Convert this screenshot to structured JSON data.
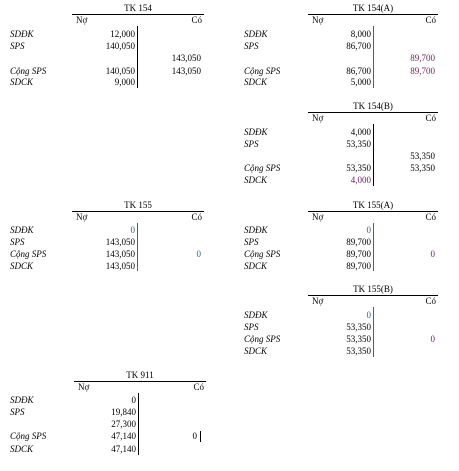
{
  "row_labels": {
    "opening": "SDĐK",
    "period": "SPS",
    "total": "Cộng SPS",
    "closing": "SDCK"
  },
  "column_labels": {
    "debit": "Nợ",
    "credit": "Có"
  },
  "accounts": [
    {
      "title": "TK 154",
      "opening_debit": "12,000",
      "period_debit": "140,050",
      "period_credit": "143,050",
      "total_debit": "140,050",
      "total_credit": "143,050",
      "closing_debit": "9,000"
    },
    {
      "title": "TK 154(A)",
      "opening_debit": "8,000",
      "period_debit": "86,700",
      "period_credit": "89,700",
      "total_debit": "86,700",
      "total_credit": "89,700",
      "closing_debit": "5,000"
    },
    {
      "title": "TK 154(B)",
      "opening_debit": "4,000",
      "period_debit": "53,350",
      "period_credit": "53,350",
      "total_debit": "53,350",
      "total_credit": "53,350",
      "closing_debit": "4,000"
    },
    {
      "title": "TK 155",
      "opening_debit": "0",
      "period_debit": "143,050",
      "total_debit": "143,050",
      "total_credit": "0",
      "closing_debit": "143,050"
    },
    {
      "title": "TK 155(A)",
      "opening_debit": "0",
      "period_debit": "89,700",
      "total_debit": "89,700",
      "total_credit": "0",
      "closing_debit": "89,700"
    },
    {
      "title": "TK 155(B)",
      "opening_debit": "0",
      "period_debit": "53,350",
      "total_debit": "53,350",
      "total_credit": "0",
      "closing_debit": "53,350"
    },
    {
      "title": "TK 911",
      "opening_debit": "0",
      "period_debit_1": "19,840",
      "period_debit_2": "27,300",
      "total_debit": "47,140",
      "total_credit": "0",
      "closing_debit": "47,140"
    }
  ]
}
